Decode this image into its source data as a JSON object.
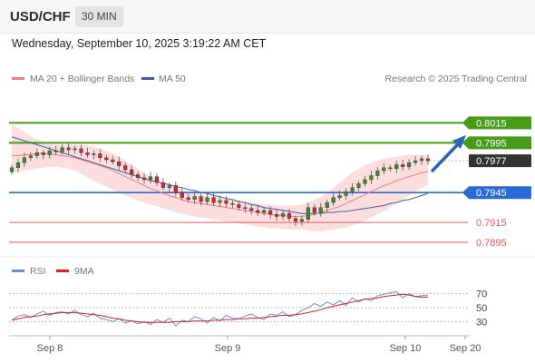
{
  "header": {
    "symbol": "USD/CHF",
    "timeframe": "30 MIN"
  },
  "datetime": "Wednesday, September 10, 2025 3:19:22 AM CET",
  "legend": {
    "ma20": "MA 20 + Bollinger Bands",
    "ma50": "MA 50",
    "credit": "Research © 2025 Trading Central"
  },
  "rsi_legend": {
    "rsi": "RSI",
    "ma": "9MA"
  },
  "colors": {
    "ma20": "#f08080",
    "bands": "#fbd3d3",
    "ma50": "#3a5fa8",
    "green": "#4a9a1a",
    "blue": "#2a6ad8",
    "red": "#e85a5a",
    "dark": "#333333",
    "rsi": "#6b8fe0",
    "rsi_ma": "#e02020",
    "up": "#3a8a2a",
    "down": "#cc2a2a"
  },
  "chart_data": [
    {
      "type": "line",
      "title": "USD/CHF 30 MIN",
      "x_labels": [
        "Sep 8",
        "Sep 9",
        "Sep 10",
        "Sep 20"
      ],
      "ylim": [
        0.7885,
        0.804
      ],
      "price_levels": [
        {
          "value": 0.8015,
          "label": "0.8015",
          "style": "green"
        },
        {
          "value": 0.7995,
          "label": "0.7995",
          "style": "green"
        },
        {
          "value": 0.7977,
          "label": "0.7977",
          "style": "current"
        },
        {
          "value": 0.7945,
          "label": "0.7945",
          "style": "blue"
        },
        {
          "value": 0.7915,
          "label": "0.7915",
          "style": "red"
        },
        {
          "value": 0.7895,
          "label": "0.7895",
          "style": "red"
        }
      ],
      "close": [
        0.797,
        0.7975,
        0.798,
        0.7982,
        0.7985,
        0.7983,
        0.7987,
        0.7986,
        0.799,
        0.7988,
        0.7989,
        0.7985,
        0.7983,
        0.7984,
        0.798,
        0.7978,
        0.7976,
        0.7972,
        0.7968,
        0.7963,
        0.796,
        0.7958,
        0.7961,
        0.7955,
        0.795,
        0.7952,
        0.7945,
        0.794,
        0.7938,
        0.7941,
        0.7936,
        0.794,
        0.7935,
        0.7937,
        0.7934,
        0.7933,
        0.793,
        0.7929,
        0.7927,
        0.7925,
        0.7927,
        0.7923,
        0.7921,
        0.7924,
        0.7919,
        0.7916,
        0.7918,
        0.793,
        0.7925,
        0.793,
        0.7935,
        0.794,
        0.7942,
        0.7946,
        0.795,
        0.7954,
        0.7958,
        0.7962,
        0.7967,
        0.797,
        0.7969,
        0.7973,
        0.7971,
        0.7975,
        0.7977,
        0.7979,
        0.7977
      ],
      "ma20": [
        0.7982,
        0.7982,
        0.7983,
        0.7983,
        0.7984,
        0.7984,
        0.7984,
        0.7983,
        0.7982,
        0.7981,
        0.798,
        0.7978,
        0.7976,
        0.7974,
        0.7972,
        0.797,
        0.7967,
        0.7964,
        0.7961,
        0.7958,
        0.7955,
        0.7952,
        0.7949,
        0.7947,
        0.7944,
        0.7942,
        0.794,
        0.7938,
        0.7936,
        0.7935,
        0.7934,
        0.7933,
        0.7932,
        0.7931,
        0.793,
        0.7929,
        0.7928,
        0.7927,
        0.7926,
        0.7925,
        0.7924,
        0.7923,
        0.7922,
        0.7922,
        0.7921,
        0.7921,
        0.7921,
        0.7922,
        0.7923,
        0.7925,
        0.7927,
        0.7929,
        0.7931,
        0.7934,
        0.7937,
        0.794,
        0.7943,
        0.7946,
        0.7949,
        0.7952,
        0.7954,
        0.7957,
        0.7959,
        0.7961,
        0.7963,
        0.7965,
        0.7966
      ],
      "bb_upper": [
        0.8013,
        0.801,
        0.8006,
        0.8002,
        0.7999,
        0.7996,
        0.7994,
        0.7993,
        0.7993,
        0.7993,
        0.7993,
        0.7993,
        0.7992,
        0.7991,
        0.7989,
        0.7987,
        0.7984,
        0.7981,
        0.7977,
        0.7973,
        0.7969,
        0.7965,
        0.7961,
        0.7958,
        0.7955,
        0.7952,
        0.795,
        0.7948,
        0.7946,
        0.7944,
        0.7943,
        0.7942,
        0.7941,
        0.794,
        0.7939,
        0.7938,
        0.7937,
        0.7936,
        0.7935,
        0.7934,
        0.7933,
        0.7933,
        0.7932,
        0.7932,
        0.7932,
        0.7932,
        0.7933,
        0.7935,
        0.7938,
        0.7941,
        0.7945,
        0.795,
        0.7955,
        0.796,
        0.7965,
        0.7969,
        0.7972,
        0.7975,
        0.7977,
        0.7979,
        0.798,
        0.7981,
        0.7982,
        0.7983,
        0.7983,
        0.7983,
        0.7983
      ],
      "bb_lower": [
        0.7965,
        0.7966,
        0.7967,
        0.7968,
        0.7969,
        0.797,
        0.7971,
        0.7971,
        0.797,
        0.7969,
        0.7967,
        0.7964,
        0.796,
        0.7957,
        0.7954,
        0.7951,
        0.7948,
        0.7945,
        0.7942,
        0.794,
        0.7937,
        0.7935,
        0.7933,
        0.7931,
        0.7929,
        0.7927,
        0.7925,
        0.7924,
        0.7922,
        0.7921,
        0.792,
        0.7919,
        0.7918,
        0.7917,
        0.7916,
        0.7915,
        0.7914,
        0.7913,
        0.7912,
        0.7911,
        0.791,
        0.7909,
        0.7909,
        0.7908,
        0.7908,
        0.7908,
        0.7908,
        0.7907,
        0.7906,
        0.7906,
        0.7907,
        0.7908,
        0.7909,
        0.791,
        0.7912,
        0.7914,
        0.7917,
        0.792,
        0.7923,
        0.7926,
        0.793,
        0.7934,
        0.7938,
        0.7942,
        0.7946,
        0.795,
        0.7953
      ],
      "ma50": [
        0.8001,
        0.7999,
        0.7997,
        0.7995,
        0.7993,
        0.7991,
        0.7989,
        0.7987,
        0.7985,
        0.7983,
        0.7981,
        0.7979,
        0.7977,
        0.7975,
        0.7973,
        0.7971,
        0.7969,
        0.7967,
        0.7965,
        0.7963,
        0.7961,
        0.7959,
        0.7957,
        0.7956,
        0.7954,
        0.7953,
        0.7951,
        0.795,
        0.7948,
        0.7947,
        0.7945,
        0.7944,
        0.7942,
        0.7941,
        0.7939,
        0.7938,
        0.7936,
        0.7935,
        0.7933,
        0.7932,
        0.793,
        0.7929,
        0.7928,
        0.7927,
        0.7926,
        0.7925,
        0.7924,
        0.7924,
        0.7924,
        0.7924,
        0.7925,
        0.7925,
        0.7926,
        0.7926,
        0.7927,
        0.7928,
        0.7929,
        0.793,
        0.7931,
        0.7932,
        0.7934,
        0.7935,
        0.7937,
        0.7938,
        0.794,
        0.7942,
        0.7944
      ]
    },
    {
      "type": "line",
      "title": "RSI",
      "ylim": [
        15,
        85
      ],
      "yticks": [
        70,
        50,
        30
      ],
      "series": [
        {
          "name": "RSI",
          "values": [
            32,
            38,
            40,
            36,
            41,
            45,
            39,
            43,
            44,
            41,
            46,
            40,
            37,
            42,
            35,
            33,
            30,
            34,
            28,
            31,
            27,
            30,
            26,
            33,
            29,
            35,
            24,
            32,
            30,
            37,
            34,
            28,
            36,
            31,
            39,
            35,
            34,
            38,
            41,
            36,
            33,
            41,
            39,
            44,
            37,
            40,
            46,
            50,
            56,
            52,
            58,
            54,
            60,
            53,
            64,
            58,
            63,
            60,
            67,
            69,
            71,
            73,
            64,
            70,
            66,
            67,
            68
          ]
        },
        {
          "name": "9MA",
          "values": [
            32,
            34,
            36,
            37,
            38,
            40,
            41,
            42,
            43,
            43,
            43,
            42,
            41,
            40,
            39,
            37,
            35,
            34,
            32,
            31,
            30,
            29,
            29,
            29,
            29,
            29,
            30,
            30,
            30,
            31,
            31,
            31,
            32,
            32,
            33,
            33,
            34,
            34,
            35,
            35,
            36,
            37,
            38,
            39,
            39,
            40,
            41,
            43,
            45,
            47,
            50,
            52,
            54,
            56,
            58,
            60,
            62,
            63,
            64,
            66,
            67,
            68,
            69,
            68,
            66,
            65,
            65
          ]
        }
      ]
    }
  ]
}
